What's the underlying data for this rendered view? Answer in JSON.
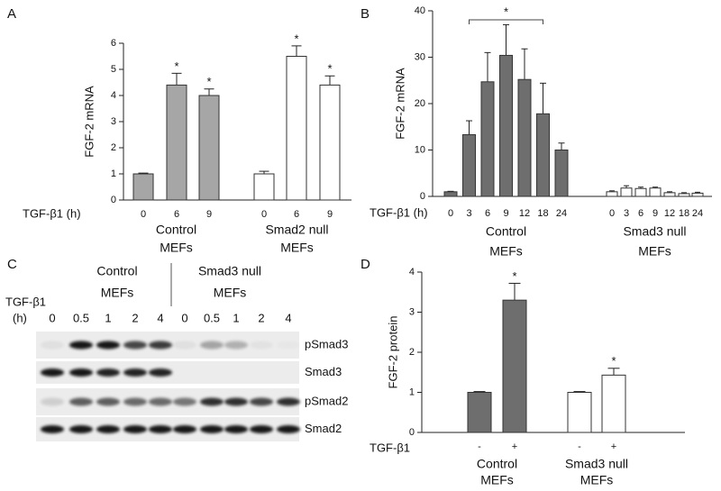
{
  "chart_data": [
    {
      "type": "bar",
      "panel": "A",
      "y_label": "FGF-2 mRNA",
      "x_label": "TGF-β1 (h)",
      "ylim": [
        0,
        6
      ],
      "yticks": [
        0,
        1,
        2,
        3,
        4,
        5,
        6
      ],
      "groups": [
        {
          "label": [
            "Control",
            "MEFs"
          ],
          "color": "#a6a6a6",
          "categories": [
            "0",
            "6",
            "9"
          ],
          "values": [
            1.0,
            4.4,
            4.0
          ],
          "errors": [
            0.03,
            0.45,
            0.25
          ],
          "annotations": [
            null,
            "*",
            "*"
          ]
        },
        {
          "label": [
            "Smad2 null",
            "MEFs"
          ],
          "color": "#ffffff",
          "categories": [
            "0",
            "6",
            "9"
          ],
          "values": [
            1.0,
            5.5,
            4.4
          ],
          "errors": [
            0.1,
            0.4,
            0.35
          ],
          "annotations": [
            null,
            "*",
            "*"
          ]
        }
      ]
    },
    {
      "type": "bar",
      "panel": "B",
      "y_label": "FGF-2 mRNA",
      "x_label": "TGF-β1 (h)",
      "ylim": [
        0,
        40
      ],
      "yticks": [
        0,
        10,
        20,
        30,
        40
      ],
      "bracket_label": "*",
      "groups": [
        {
          "label": [
            "Control",
            "MEFs"
          ],
          "color": "#6e6e6e",
          "categories": [
            "0",
            "3",
            "6",
            "9",
            "12",
            "18",
            "24"
          ],
          "values": [
            1.0,
            13.3,
            24.7,
            30.4,
            25.2,
            17.8,
            10.0
          ],
          "errors": [
            0.1,
            3.0,
            6.3,
            6.6,
            6.6,
            6.6,
            1.5
          ],
          "annotations": [
            null,
            null,
            null,
            null,
            null,
            null,
            null
          ]
        },
        {
          "label": [
            "Smad3 null",
            "MEFs"
          ],
          "color": "#ffffff",
          "categories": [
            "0",
            "3",
            "6",
            "9",
            "12",
            "18",
            "24"
          ],
          "values": [
            1.0,
            1.8,
            1.7,
            1.8,
            0.8,
            0.6,
            0.7
          ],
          "errors": [
            0.2,
            0.5,
            0.3,
            0.2,
            0.2,
            0.2,
            0.2
          ],
          "annotations": [
            null,
            null,
            null,
            null,
            null,
            null,
            null
          ]
        }
      ]
    },
    {
      "type": "bar",
      "panel": "D",
      "y_label": "FGF-2 protein",
      "x_label": "TGF-β1",
      "ylim": [
        0,
        4
      ],
      "yticks": [
        0,
        1,
        2,
        3,
        4
      ],
      "groups": [
        {
          "label": [
            "Control",
            "MEFs"
          ],
          "color": "#6e6e6e",
          "categories": [
            "-",
            "+"
          ],
          "values": [
            1.0,
            3.3
          ],
          "errors": [
            0.02,
            0.42
          ],
          "annotations": [
            null,
            "*"
          ]
        },
        {
          "label": [
            "Smad3 null",
            "MEFs"
          ],
          "color": "#ffffff",
          "categories": [
            "-",
            "+"
          ],
          "values": [
            1.0,
            1.43
          ],
          "errors": [
            0.02,
            0.17
          ],
          "annotations": [
            null,
            "*"
          ]
        }
      ]
    }
  ],
  "blot": {
    "panel": "C",
    "groups": [
      [
        "Control",
        "MEFs"
      ],
      [
        "Smad3 null",
        "MEFs"
      ]
    ],
    "x_label": [
      "TGF-β1",
      "(h)"
    ],
    "lanes": [
      "0",
      "0.5",
      "1",
      "2",
      "4",
      "0",
      "0.5",
      "1",
      "2",
      "4"
    ],
    "rows": [
      "pSmad3",
      "Smad3",
      "pSmad2",
      "Smad2"
    ]
  }
}
